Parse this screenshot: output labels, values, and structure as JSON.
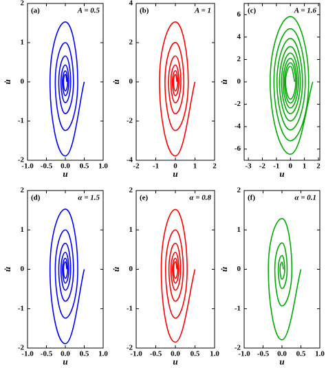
{
  "chart_data": [
    {
      "type": "line",
      "panel": "(a)",
      "annotation": "A = 0.5",
      "xlabel": "u",
      "ylabel": "u̇",
      "xlim": [
        -1,
        1
      ],
      "xticks": [
        {
          "value": -1,
          "label": "-1.0"
        },
        {
          "value": -0.5,
          "label": "-0.5"
        },
        {
          "value": 0,
          "label": "0.0"
        },
        {
          "value": 0.5,
          "label": "0.5"
        },
        {
          "value": 1,
          "label": "1.0"
        }
      ],
      "ylim": [
        -2,
        2
      ],
      "yticks": [
        -2,
        -1,
        0,
        1,
        2
      ],
      "series": [
        {
          "color": "#0000ff",
          "x": [
            0.5,
            0,
            -0.405,
            0,
            0.328,
            0,
            -0.266,
            0,
            0.215,
            0,
            -0.174,
            0,
            0.141,
            0,
            -0.114,
            0,
            0.093,
            0,
            -0.075,
            0,
            0.061,
            0,
            -0.049,
            0,
            0.04
          ],
          "values": [
            0,
            -1.89,
            0,
            1.53,
            0,
            -1.24,
            0,
            1.0,
            0,
            -0.81,
            0,
            0.66,
            0,
            -0.53,
            0,
            0.43,
            0,
            -0.35,
            0,
            0.28,
            0,
            -0.23,
            0,
            0.19,
            0
          ]
        }
      ]
    },
    {
      "type": "line",
      "panel": "(b)",
      "annotation": "A = 1",
      "xlabel": "u",
      "ylabel": "u̇",
      "xlim": [
        -2,
        2
      ],
      "xticks": [
        -2,
        -1,
        0,
        1,
        2
      ],
      "ylim": [
        -4,
        4
      ],
      "yticks": [
        -4,
        -2,
        0,
        2,
        4
      ],
      "series": [
        {
          "color": "#ff0000",
          "x": [
            1,
            0,
            -0.81,
            0,
            0.656,
            0,
            -0.531,
            0,
            0.43,
            0,
            -0.349,
            0,
            0.282,
            0,
            -0.229,
            0,
            0.185,
            0,
            -0.15,
            0,
            0.122,
            0,
            -0.098,
            0,
            0.08
          ],
          "values": [
            0,
            -3.78,
            0,
            3.06,
            0,
            -2.48,
            0,
            2.01,
            0,
            -1.63,
            0,
            1.32,
            0,
            -1.07,
            0,
            0.86,
            0,
            -0.7,
            0,
            0.57,
            0,
            -0.46,
            0,
            0.37,
            0
          ]
        }
      ]
    },
    {
      "type": "line",
      "panel": "(c)",
      "annotation": "A = 1.6",
      "xlabel": "u",
      "ylabel": "u̇",
      "xlim": [
        -3.3,
        2.1
      ],
      "xticks": [
        -3,
        -2,
        -1,
        0,
        1,
        2
      ],
      "ylim": [
        -7,
        7
      ],
      "yticks": [
        -6,
        -4,
        -2,
        0,
        2,
        4,
        6
      ],
      "series": [
        {
          "color": "#00aa00",
          "x": [
            1.6,
            0,
            -1.444,
            0,
            1.303,
            0,
            -1.176,
            0,
            1.061,
            0,
            -0.958,
            0,
            0.865,
            0,
            -0.78,
            0,
            0.704,
            0,
            -0.636,
            0,
            0.574,
            0,
            -0.518,
            0,
            0.467,
            0,
            -0.422,
            0,
            0.38,
            0,
            -0.343,
            0,
            0.31
          ],
          "values": [
            0,
            -6.46,
            0,
            5.83,
            0,
            -5.26,
            0,
            4.75,
            0,
            -4.29,
            0,
            3.87,
            0,
            -3.49,
            0,
            3.15,
            0,
            -2.84,
            0,
            2.57,
            0,
            -2.32,
            0,
            2.09,
            0,
            -1.89,
            0,
            1.7,
            0,
            -1.54,
            0,
            1.39,
            0
          ]
        }
      ]
    },
    {
      "type": "line",
      "panel": "(d)",
      "annotation": "α = 1.5",
      "xlabel": "u",
      "ylabel": "u̇",
      "xlim": [
        -1,
        1
      ],
      "xticks": [
        {
          "value": -1,
          "label": "-1.0"
        },
        {
          "value": -0.5,
          "label": "-0.5"
        },
        {
          "value": 0,
          "label": "0.0"
        },
        {
          "value": 0.5,
          "label": "0.5"
        },
        {
          "value": 1,
          "label": "1.0"
        }
      ],
      "ylim": [
        -2,
        2
      ],
      "yticks": [
        -2,
        -1,
        0,
        1,
        2
      ],
      "series": [
        {
          "color": "#0000ff",
          "x": [
            0.5,
            0,
            -0.405,
            0,
            0.328,
            0,
            -0.266,
            0,
            0.215,
            0,
            -0.174,
            0,
            0.141,
            0,
            -0.114,
            0,
            0.093,
            0,
            -0.075,
            0,
            0.061,
            0,
            -0.049,
            0,
            0.04
          ],
          "values": [
            0,
            -1.89,
            0,
            1.53,
            0,
            -1.24,
            0,
            1.0,
            0,
            -0.81,
            0,
            0.66,
            0,
            -0.53,
            0,
            0.43,
            0,
            -0.35,
            0,
            0.28,
            0,
            -0.23,
            0,
            0.19,
            0
          ]
        }
      ]
    },
    {
      "type": "line",
      "panel": "(e)",
      "annotation": "α = 0.8",
      "xlabel": "u",
      "ylabel": "u̇",
      "xlim": [
        -1,
        1
      ],
      "xticks": [
        {
          "value": -1,
          "label": "-1.0"
        },
        {
          "value": -0.5,
          "label": "-0.5"
        },
        {
          "value": 0,
          "label": "0.0"
        },
        {
          "value": 0.5,
          "label": "0.5"
        },
        {
          "value": 1,
          "label": "1.0"
        }
      ],
      "ylim": [
        -2,
        2
      ],
      "yticks": [
        -2,
        -1,
        0,
        1,
        2
      ],
      "series": [
        {
          "color": "#ff0000",
          "x": [
            0.5,
            0,
            -0.36,
            0,
            0.3,
            0,
            -0.25,
            0,
            0.2,
            0,
            -0.165,
            0,
            0.135,
            0,
            -0.11,
            0,
            0.09,
            0,
            -0.073,
            0,
            0.06,
            0,
            -0.048,
            0,
            0.04
          ],
          "values": [
            0,
            -1.85,
            0,
            1.52,
            0,
            -1.24,
            0,
            1.0,
            0,
            -0.81,
            0,
            0.66,
            0,
            -0.53,
            0,
            0.43,
            0,
            -0.35,
            0,
            0.28,
            0,
            -0.23,
            0,
            0.19,
            0
          ]
        }
      ]
    },
    {
      "type": "line",
      "panel": "(f)",
      "annotation": "α = 0.1",
      "xlabel": "u",
      "ylabel": "u̇",
      "xlim": [
        -1,
        1
      ],
      "xticks": [
        {
          "value": -1,
          "label": "-1.0"
        },
        {
          "value": -0.5,
          "label": "-0.5"
        },
        {
          "value": 0,
          "label": "0.0"
        },
        {
          "value": 0.5,
          "label": "0.5"
        },
        {
          "value": 1,
          "label": "1.0"
        }
      ],
      "ylim": [
        -2,
        2
      ],
      "yticks": [
        -2,
        -1,
        0,
        1,
        2
      ],
      "series": [
        {
          "color": "#00aa00",
          "x": [
            0.5,
            0,
            -0.361,
            0,
            0.261,
            0,
            -0.189,
            0,
            0.136,
            0,
            -0.098,
            0,
            0.071,
            0,
            -0.051,
            0,
            0.037
          ],
          "values": [
            0,
            -1.79,
            0,
            1.29,
            0,
            -0.93,
            0,
            0.67,
            0,
            -0.49,
            0,
            0.35,
            0,
            -0.25,
            0,
            0.18,
            0
          ]
        }
      ]
    }
  ]
}
